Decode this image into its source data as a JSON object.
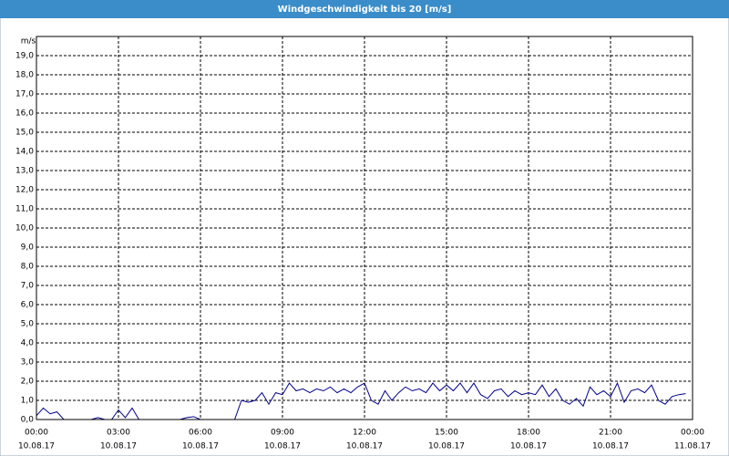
{
  "chart_data": {
    "type": "line",
    "title": "Windgeschwindigkeit bis 20 [m/s]",
    "y_label": "m/s",
    "x": [
      0,
      0.25,
      0.5,
      0.75,
      1,
      1.25,
      1.5,
      1.75,
      2,
      2.25,
      2.5,
      2.75,
      3,
      3.25,
      3.5,
      3.75,
      4,
      4.25,
      4.5,
      4.75,
      5,
      5.25,
      5.5,
      5.75,
      6,
      6.25,
      6.5,
      6.75,
      7,
      7.25,
      7.5,
      7.75,
      8,
      8.25,
      8.5,
      8.75,
      9,
      9.25,
      9.5,
      9.75,
      10,
      10.25,
      10.5,
      10.75,
      11,
      11.25,
      11.5,
      11.75,
      12,
      12.25,
      12.5,
      12.75,
      13,
      13.25,
      13.5,
      13.75,
      14,
      14.25,
      14.5,
      14.75,
      15,
      15.25,
      15.5,
      15.75,
      16,
      16.25,
      16.5,
      16.75,
      17,
      17.25,
      17.5,
      17.75,
      18,
      18.25,
      18.5,
      18.75,
      19,
      19.25,
      19.5,
      19.75,
      20,
      20.25,
      20.5,
      20.75,
      21,
      21.25,
      21.5,
      21.75,
      22,
      22.25,
      22.5,
      22.75,
      23,
      23.25,
      23.5,
      23.75
    ],
    "series": [
      {
        "name": "Windgeschwindigkeit",
        "color": "#00008b",
        "values": [
          0.2,
          0.6,
          0.3,
          0.4,
          0,
          0,
          0,
          0,
          0,
          0.1,
          0,
          0,
          0.5,
          0.1,
          0.6,
          0,
          0,
          0,
          0,
          0,
          0,
          0,
          0.1,
          0.15,
          0,
          0,
          0,
          0,
          0,
          0,
          1.0,
          0.9,
          1.0,
          1.4,
          0.8,
          1.4,
          1.3,
          1.9,
          1.5,
          1.6,
          1.4,
          1.6,
          1.5,
          1.7,
          1.4,
          1.6,
          1.4,
          1.7,
          1.9,
          1.0,
          0.8,
          1.5,
          1.0,
          1.4,
          1.7,
          1.5,
          1.6,
          1.4,
          1.9,
          1.5,
          1.8,
          1.5,
          1.9,
          1.4,
          1.9,
          1.3,
          1.1,
          1.5,
          1.6,
          1.2,
          1.5,
          1.3,
          1.4,
          1.3,
          1.8,
          1.2,
          1.6,
          1.0,
          0.8,
          1.1,
          0.7,
          1.7,
          1.3,
          1.5,
          1.2,
          1.9,
          0.9,
          1.5,
          1.6,
          1.4,
          1.8,
          1.0,
          0.8,
          1.2,
          1.3,
          1.35
        ]
      }
    ],
    "xlim": [
      0,
      24
    ],
    "xticks": [
      {
        "value": 0,
        "label": "00:00"
      },
      {
        "value": 3,
        "label": "03:00"
      },
      {
        "value": 6,
        "label": "06:00"
      },
      {
        "value": 9,
        "label": "09:00"
      },
      {
        "value": 12,
        "label": "12:00"
      },
      {
        "value": 15,
        "label": "15:00"
      },
      {
        "value": 18,
        "label": "18:00"
      },
      {
        "value": 21,
        "label": "21:00"
      },
      {
        "value": 24,
        "label": "00:00"
      }
    ],
    "xtick_dates": [
      "10.08.17",
      "10.08.17",
      "10.08.17",
      "10.08.17",
      "10.08.17",
      "10.08.17",
      "10.08.17",
      "10.08.17",
      "11.08.17"
    ],
    "ylim": [
      0,
      20
    ],
    "yticks": [
      {
        "value": 0,
        "label": "0,0"
      },
      {
        "value": 1,
        "label": "1,0"
      },
      {
        "value": 2,
        "label": "2,0"
      },
      {
        "value": 3,
        "label": "3,0"
      },
      {
        "value": 4,
        "label": "4,0"
      },
      {
        "value": 5,
        "label": "5,0"
      },
      {
        "value": 6,
        "label": "6,0"
      },
      {
        "value": 7,
        "label": "7,0"
      },
      {
        "value": 8,
        "label": "8,0"
      },
      {
        "value": 9,
        "label": "9,0"
      },
      {
        "value": 10,
        "label": "10,0"
      },
      {
        "value": 11,
        "label": "11,0"
      },
      {
        "value": 12,
        "label": "12,0"
      },
      {
        "value": 13,
        "label": "13,0"
      },
      {
        "value": 14,
        "label": "14,0"
      },
      {
        "value": 15,
        "label": "15,0"
      },
      {
        "value": 16,
        "label": "16,0"
      },
      {
        "value": 17,
        "label": "17,0"
      },
      {
        "value": 18,
        "label": "18,0"
      },
      {
        "value": 19,
        "label": "19,0"
      }
    ],
    "grid": true
  }
}
